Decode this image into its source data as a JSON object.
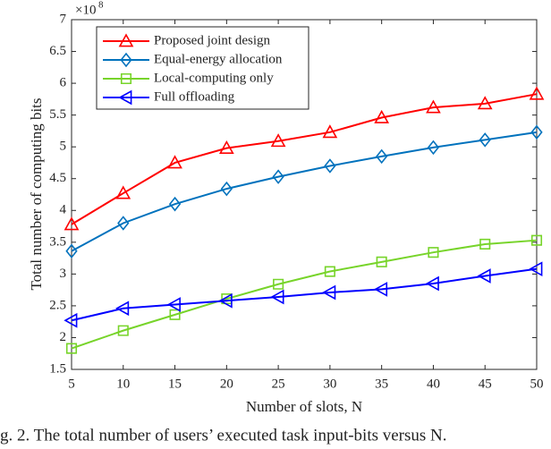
{
  "chart_data": {
    "type": "line",
    "y_multiplier": {
      "base": "×10",
      "exponent": "8"
    },
    "xlabel": "Number of slots, N",
    "ylabel": "Total number of computing bits",
    "caption": "g. 2.  The total number of users’ executed task input-bits versus N.",
    "x": [
      5,
      10,
      15,
      20,
      25,
      30,
      35,
      40,
      45,
      50
    ],
    "xlim": [
      5,
      50
    ],
    "xticks": [
      5,
      10,
      15,
      20,
      25,
      30,
      35,
      40,
      45,
      50
    ],
    "ylim": [
      1.5,
      7
    ],
    "yticks": [
      1.5,
      2,
      2.5,
      3,
      3.5,
      4,
      4.5,
      5,
      5.5,
      6,
      6.5,
      7
    ],
    "grid": false,
    "legend": "upper left",
    "series": [
      {
        "name": "Proposed joint design",
        "color": "#ff0000",
        "marker": "triangle-up",
        "values": [
          3.78,
          4.27,
          4.75,
          4.98,
          5.09,
          5.23,
          5.46,
          5.62,
          5.68,
          5.83
        ]
      },
      {
        "name": "Equal-energy allocation",
        "color": "#0072bd",
        "marker": "diamond",
        "values": [
          3.36,
          3.8,
          4.1,
          4.34,
          4.53,
          4.7,
          4.85,
          4.99,
          5.11,
          5.23
        ]
      },
      {
        "name": "Local-computing only",
        "color": "#77d42a",
        "marker": "square",
        "values": [
          1.83,
          2.11,
          2.36,
          2.61,
          2.84,
          3.04,
          3.19,
          3.34,
          3.47,
          3.53
        ]
      },
      {
        "name": "Full offloading",
        "color": "#0000ff",
        "marker": "triangle-left",
        "values": [
          2.27,
          2.46,
          2.52,
          2.58,
          2.64,
          2.71,
          2.76,
          2.85,
          2.97,
          3.08
        ]
      }
    ]
  }
}
